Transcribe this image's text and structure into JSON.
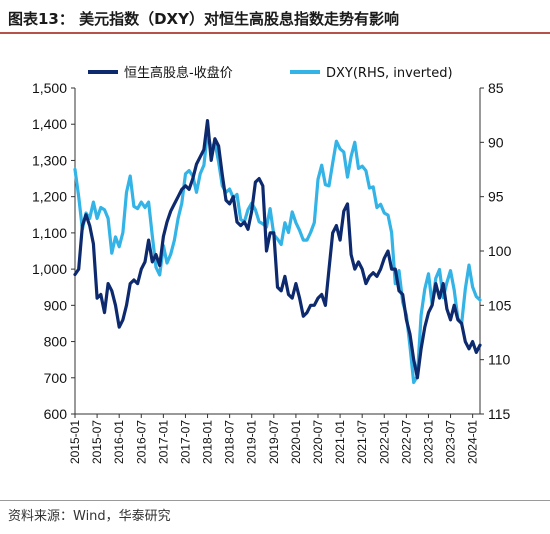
{
  "title": "图表13：  美元指数（DXY）对恒生高股息指数走势有影响",
  "source": "资料来源：Wind，华泰研究",
  "colors": {
    "hsi": "#0d2a6e",
    "dxy": "#33b3e6",
    "rule": "#b6524c"
  },
  "chart_data": {
    "type": "line",
    "title": "",
    "legend_position": "top",
    "x": [
      "2015-01",
      "2015-02",
      "2015-03",
      "2015-04",
      "2015-05",
      "2015-06",
      "2015-07",
      "2015-08",
      "2015-09",
      "2015-10",
      "2015-11",
      "2015-12",
      "2016-01",
      "2016-02",
      "2016-03",
      "2016-04",
      "2016-05",
      "2016-06",
      "2016-07",
      "2016-08",
      "2016-09",
      "2016-10",
      "2016-11",
      "2016-12",
      "2017-01",
      "2017-02",
      "2017-03",
      "2017-04",
      "2017-05",
      "2017-06",
      "2017-07",
      "2017-08",
      "2017-09",
      "2017-10",
      "2017-11",
      "2017-12",
      "2018-01",
      "2018-02",
      "2018-03",
      "2018-04",
      "2018-05",
      "2018-06",
      "2018-07",
      "2018-08",
      "2018-09",
      "2018-10",
      "2018-11",
      "2018-12",
      "2019-01",
      "2019-02",
      "2019-03",
      "2019-04",
      "2019-05",
      "2019-06",
      "2019-07",
      "2019-08",
      "2019-09",
      "2019-10",
      "2019-11",
      "2019-12",
      "2020-01",
      "2020-02",
      "2020-03",
      "2020-04",
      "2020-05",
      "2020-06",
      "2020-07",
      "2020-08",
      "2020-09",
      "2020-10",
      "2020-11",
      "2020-12",
      "2021-01",
      "2021-02",
      "2021-03",
      "2021-04",
      "2021-05",
      "2021-06",
      "2021-07",
      "2021-08",
      "2021-09",
      "2021-10",
      "2021-11",
      "2021-12",
      "2022-01",
      "2022-02",
      "2022-03",
      "2022-04",
      "2022-05",
      "2022-06",
      "2022-07",
      "2022-08",
      "2022-09",
      "2022-10",
      "2022-11",
      "2022-12",
      "2023-01",
      "2023-02",
      "2023-03",
      "2023-04",
      "2023-05",
      "2023-06",
      "2023-07",
      "2023-08",
      "2023-09",
      "2023-10",
      "2023-11",
      "2023-12",
      "2024-01",
      "2024-02",
      "2024-03"
    ],
    "x_tick_labels": [
      "2015-01",
      "2015-07",
      "2016-01",
      "2016-07",
      "2017-01",
      "2017-07",
      "2018-01",
      "2018-07",
      "2019-01",
      "2019-07",
      "2020-01",
      "2020-07",
      "2021-01",
      "2021-07",
      "2022-01",
      "2022-07",
      "2023-01",
      "2023-07",
      "2024-01"
    ],
    "y_left": {
      "ticks": [
        "1,500",
        "1,400",
        "1,300",
        "1,200",
        "1,100",
        "1,000",
        "900",
        "800",
        "700",
        "600"
      ],
      "min": 600,
      "max": 1500
    },
    "y_right": {
      "ticks": [
        "85",
        "90",
        "95",
        "100",
        "105",
        "110",
        "115"
      ],
      "min": 85,
      "max": 115,
      "inverted": true
    },
    "series": [
      {
        "name": "恒生高股息-收盘价",
        "axis": "left",
        "color": "#0d2a6e",
        "values": [
          985,
          1000,
          1120,
          1150,
          1120,
          1070,
          920,
          930,
          880,
          960,
          940,
          900,
          840,
          860,
          900,
          960,
          970,
          960,
          1000,
          1020,
          1080,
          1020,
          1040,
          1010,
          1090,
          1130,
          1160,
          1180,
          1200,
          1220,
          1230,
          1220,
          1250,
          1290,
          1310,
          1330,
          1410,
          1300,
          1360,
          1340,
          1260,
          1190,
          1180,
          1200,
          1130,
          1120,
          1130,
          1110,
          1160,
          1240,
          1250,
          1230,
          1050,
          1100,
          1100,
          950,
          940,
          980,
          930,
          920,
          960,
          920,
          870,
          880,
          900,
          900,
          920,
          930,
          900,
          1000,
          1100,
          1120,
          1080,
          1160,
          1180,
          1040,
          1000,
          1020,
          1000,
          960,
          980,
          990,
          980,
          1000,
          1030,
          1050,
          1000,
          1000,
          940,
          930,
          860,
          820,
          750,
          700,
          780,
          840,
          880,
          900,
          960,
          920,
          960,
          890,
          860,
          900,
          860,
          850,
          800,
          780,
          800,
          770,
          790
        ]
      },
      {
        "name": "DXY(RHS, inverted)",
        "axis": "right",
        "color": "#33b3e6",
        "values": [
          92.5,
          95.0,
          98.0,
          96.5,
          97.0,
          95.5,
          97.0,
          96.0,
          96.2,
          97.0,
          100.2,
          98.7,
          99.6,
          98.3,
          94.6,
          93.1,
          95.9,
          96.1,
          95.5,
          96.0,
          95.5,
          98.6,
          101.5,
          102.2,
          99.5,
          101.1,
          100.3,
          99.0,
          97.0,
          95.6,
          92.9,
          92.6,
          93.1,
          94.6,
          92.9,
          92.1,
          89.1,
          90.6,
          90.0,
          91.8,
          94.0,
          94.6,
          94.3,
          95.1,
          94.8,
          97.1,
          97.3,
          96.2,
          95.6,
          96.2,
          97.3,
          97.5,
          97.8,
          96.1,
          98.5,
          98.9,
          99.4,
          97.4,
          98.3,
          96.4,
          97.4,
          98.1,
          99.0,
          99.0,
          98.3,
          97.4,
          93.4,
          92.1,
          93.9,
          94.0,
          91.9,
          89.9,
          90.6,
          90.9,
          93.2,
          91.3,
          90.0,
          92.4,
          92.2,
          92.6,
          94.2,
          94.1,
          96.0,
          95.7,
          96.5,
          96.7,
          98.3,
          103.0,
          101.8,
          104.7,
          105.9,
          108.8,
          112.1,
          111.5,
          105.9,
          103.5,
          102.1,
          104.9,
          102.5,
          101.7,
          104.3,
          102.9,
          101.8,
          103.6,
          106.2,
          106.7,
          103.5,
          101.3,
          103.3,
          104.2,
          104.5
        ]
      }
    ]
  }
}
